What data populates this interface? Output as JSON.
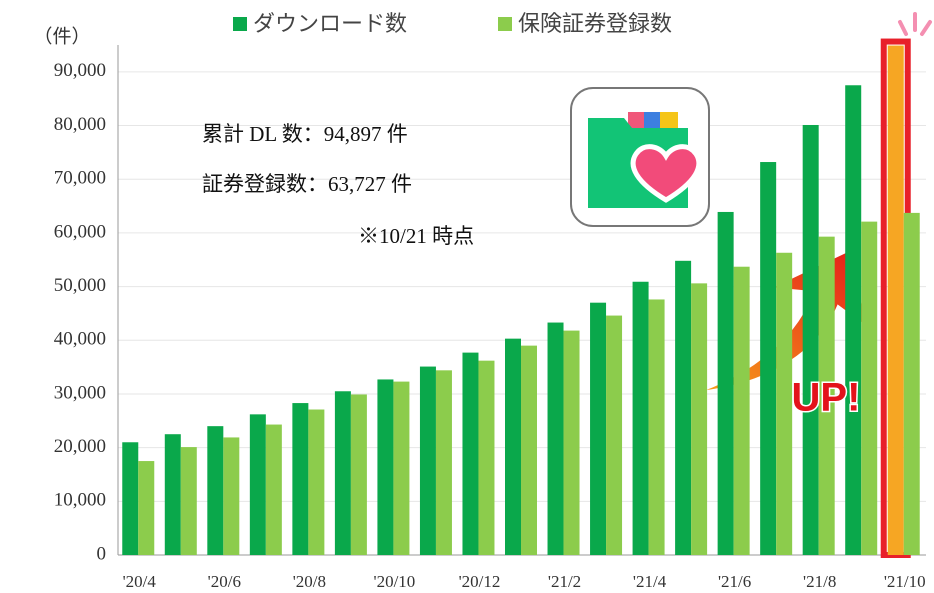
{
  "chart_data": {
    "type": "bar",
    "y_axis_label": "（件）",
    "categories": [
      "'20/4",
      null,
      "'20/6",
      null,
      "'20/8",
      null,
      "'20/10",
      null,
      "'20/12",
      null,
      "'21/2",
      null,
      "'21/4",
      null,
      "'21/6",
      null,
      "'21/8",
      null,
      "'21/10"
    ],
    "series": [
      {
        "name": "ダウンロード数",
        "color": "#0aa84b",
        "values": [
          21000,
          22500,
          24000,
          26200,
          28300,
          30500,
          32700,
          35100,
          37700,
          40300,
          43300,
          47000,
          50900,
          54800,
          63900,
          73200,
          80100,
          87500,
          94897
        ]
      },
      {
        "name": "保険証券登録数",
        "color": "#8ccc4c",
        "values": [
          17500,
          20100,
          21900,
          24300,
          27100,
          29900,
          32300,
          34400,
          36200,
          39000,
          41800,
          44600,
          47600,
          50600,
          53700,
          56300,
          59300,
          62100,
          63727
        ]
      }
    ],
    "ylim": [
      0,
      95000
    ],
    "yticks": [
      0,
      {
        "value": 10000,
        "label": "10,000"
      },
      {
        "value": 20000,
        "label": "20,000"
      },
      {
        "value": 30000,
        "label": "30,000"
      },
      {
        "value": 40000,
        "label": "40,000"
      },
      {
        "value": 50000,
        "label": "50,000"
      },
      {
        "value": 60000,
        "label": "60,000"
      },
      {
        "value": 70000,
        "label": "70,000"
      },
      {
        "value": 80000,
        "label": "80,000"
      },
      {
        "value": 90000,
        "label": "90,000"
      }
    ],
    "grid": true,
    "annotations": [
      "累計 DL 数：94,897 件",
      "証券登録数：63,727 件",
      "※10/21 時点",
      "UP!"
    ]
  }
}
